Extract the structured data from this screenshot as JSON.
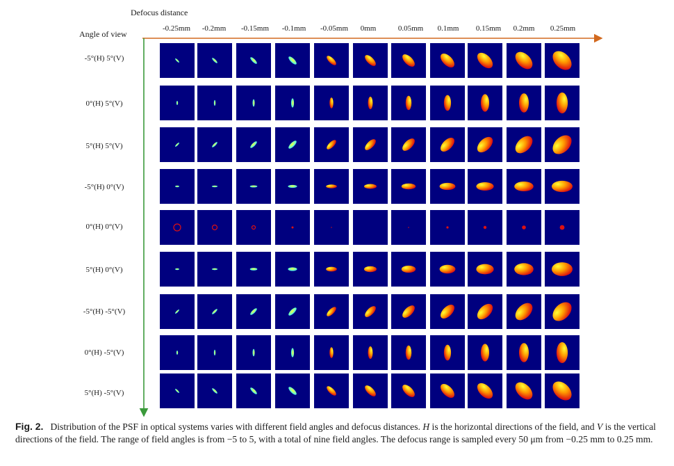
{
  "figure": {
    "x_axis_title": "Defocus distance",
    "y_axis_title": "Angle of view",
    "columns": [
      "-0.25mm",
      "-0.2mm",
      "-0.15mm",
      "-0.1mm",
      "-0.05mm",
      "0mm",
      "0.05mm",
      "0.1mm",
      "0.15mm",
      "0.2mm",
      "0.25mm"
    ],
    "rows": [
      "-5°(H) 5°(V)",
      "0°(H) 5°(V)",
      "5°(H) 5°(V)",
      "-5°(H) 0°(V)",
      "0°(H) 0°(V)",
      "5°(H) 0°(V)",
      "-5°(H) -5°(V)",
      "0°(H) -5°(V)",
      "5°(H) -5°(V)"
    ],
    "colors": {
      "tile_background": "#00007f",
      "axis_x": "#d2691e",
      "axis_y": "#3a9a3a",
      "spot_core": "#ffff33",
      "spot_mid": "#ff9900",
      "spot_edge": "#dd1111"
    }
  },
  "caption": {
    "label": "Fig. 2.",
    "text_1": "Distribution of the PSF in optical systems varies with different field angles and defocus distances.",
    "symbol_h": "H",
    "text_2": "is the horizontal directions of the field, and",
    "symbol_v": "V",
    "text_3": "is the vertical directions of the field. The range of field angles is from −5 to 5, with a total of nine field angles. The defocus range is sampled every 50 μm from −0.25 mm to 0.25 mm."
  }
}
